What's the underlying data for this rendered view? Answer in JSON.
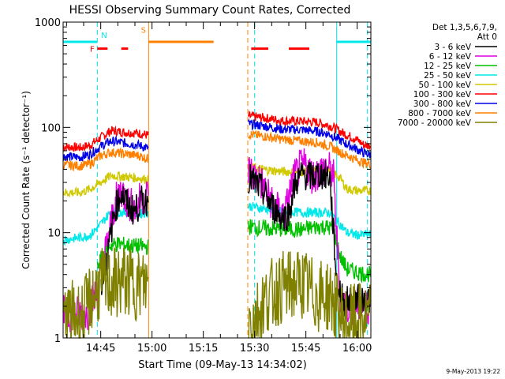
{
  "chart_data": {
    "type": "line",
    "title": "HESSI Observing Summary Count Rates, Corrected",
    "xlabel": "Start Time (09-May-13 14:34:02)",
    "ylabel": "Corrected Count Rate (s⁻¹ detector⁻¹)",
    "y_scale": "log",
    "ylim": [
      1,
      1000
    ],
    "xlim_minutes_after_1434": [
      0,
      90
    ],
    "y_ticks": [
      {
        "value": 1,
        "label": "1"
      },
      {
        "value": 10,
        "label": "10"
      },
      {
        "value": 100,
        "label": "100"
      },
      {
        "value": 1000,
        "label": "1000"
      }
    ],
    "x_ticks": [
      {
        "minutes": 11,
        "label": "14:45"
      },
      {
        "minutes": 26,
        "label": "15:00"
      },
      {
        "minutes": 41,
        "label": "15:15"
      },
      {
        "minutes": 56,
        "label": "15:30"
      },
      {
        "minutes": 71,
        "label": "15:45"
      },
      {
        "minutes": 86,
        "label": "16:00"
      }
    ],
    "legend": {
      "placement": "right",
      "header": [
        "Det 1,3,5,6,7,9,",
        "Att 0"
      ],
      "entries": [
        {
          "label": "3 - 6 keV",
          "color": "#000000"
        },
        {
          "label": "6 - 12 keV",
          "color": "#e000e0"
        },
        {
          "label": "12 - 25 keV",
          "color": "#00c000"
        },
        {
          "label": "25 - 50 keV",
          "color": "#00e8e8"
        },
        {
          "label": "50 - 100 keV",
          "color": "#d0c800"
        },
        {
          "label": "100 - 300 keV",
          "color": "#ff0000"
        },
        {
          "label": "300 - 800 keV",
          "color": "#0000e8"
        },
        {
          "label": "800 - 7000 keV",
          "color": "#ff8000"
        },
        {
          "label": "7000 - 20000 keV",
          "color": "#808000"
        }
      ]
    },
    "segments_minutes": [
      [
        0,
        25
      ],
      [
        54,
        90
      ]
    ],
    "data_gap_minutes": [
      25,
      54
    ],
    "series": [
      {
        "name": "100 - 300 keV",
        "color": "#ff0000",
        "points": [
          [
            0,
            66
          ],
          [
            5,
            64
          ],
          [
            8,
            68
          ],
          [
            11,
            80
          ],
          [
            14,
            93
          ],
          [
            18,
            90
          ],
          [
            22,
            88
          ],
          [
            25,
            84
          ],
          [
            54,
            128
          ],
          [
            58,
            124
          ],
          [
            64,
            116
          ],
          [
            70,
            114
          ],
          [
            74,
            112
          ],
          [
            78,
            104
          ],
          [
            82,
            88
          ],
          [
            86,
            76
          ],
          [
            88,
            68
          ],
          [
            90,
            67
          ]
        ]
      },
      {
        "name": "300 - 800 keV",
        "color": "#0000e8",
        "points": [
          [
            0,
            53
          ],
          [
            5,
            52
          ],
          [
            8,
            56
          ],
          [
            11,
            66
          ],
          [
            14,
            74
          ],
          [
            18,
            71
          ],
          [
            22,
            68
          ],
          [
            25,
            63
          ],
          [
            54,
            108
          ],
          [
            58,
            104
          ],
          [
            64,
            96
          ],
          [
            70,
            95
          ],
          [
            74,
            92
          ],
          [
            78,
            86
          ],
          [
            82,
            72
          ],
          [
            86,
            62
          ],
          [
            88,
            57
          ],
          [
            90,
            55
          ]
        ]
      },
      {
        "name": "800 - 7000 keV",
        "color": "#ff8000",
        "points": [
          [
            0,
            44
          ],
          [
            5,
            43
          ],
          [
            8,
            45
          ],
          [
            11,
            54
          ],
          [
            14,
            58
          ],
          [
            18,
            56
          ],
          [
            22,
            54
          ],
          [
            25,
            50
          ],
          [
            54,
            86
          ],
          [
            58,
            83
          ],
          [
            64,
            77
          ],
          [
            70,
            74
          ],
          [
            74,
            72
          ],
          [
            78,
            66
          ],
          [
            82,
            56
          ],
          [
            86,
            49
          ],
          [
            88,
            46
          ],
          [
            90,
            45
          ]
        ]
      },
      {
        "name": "50 - 100 keV",
        "color": "#d0c800",
        "points": [
          [
            0,
            24
          ],
          [
            5,
            24
          ],
          [
            8,
            26
          ],
          [
            11,
            30
          ],
          [
            14,
            35
          ],
          [
            18,
            34
          ],
          [
            22,
            33
          ],
          [
            25,
            32
          ],
          [
            54,
            42
          ],
          [
            58,
            40
          ],
          [
            64,
            38
          ],
          [
            70,
            38
          ],
          [
            74,
            39
          ],
          [
            78,
            39
          ],
          [
            81,
            33
          ],
          [
            83,
            26
          ],
          [
            86,
            25
          ],
          [
            90,
            25
          ]
        ]
      },
      {
        "name": "25 - 50 keV",
        "color": "#00e8e8",
        "points": [
          [
            0,
            8.5
          ],
          [
            5,
            9
          ],
          [
            8,
            9.5
          ],
          [
            11,
            12
          ],
          [
            14,
            16
          ],
          [
            18,
            15.5
          ],
          [
            22,
            15
          ],
          [
            25,
            15.5
          ],
          [
            54,
            18
          ],
          [
            58,
            17
          ],
          [
            64,
            16
          ],
          [
            70,
            15.5
          ],
          [
            74,
            15.5
          ],
          [
            78,
            15.5
          ],
          [
            81,
            12
          ],
          [
            83,
            10
          ],
          [
            86,
            9.5
          ],
          [
            90,
            9.6
          ]
        ]
      },
      {
        "name": "12 - 25 keV",
        "color": "#00c000",
        "points": [
          [
            10,
            4.8
          ],
          [
            11,
            5.5
          ],
          [
            13,
            7.5
          ],
          [
            16,
            7.8
          ],
          [
            20,
            7.5
          ],
          [
            25,
            7.3
          ],
          [
            54,
            11.5
          ],
          [
            58,
            11
          ],
          [
            64,
            10.8
          ],
          [
            70,
            10.7
          ],
          [
            75,
            11.5
          ],
          [
            79,
            11
          ],
          [
            81,
            6
          ],
          [
            83,
            4.5
          ],
          [
            86,
            4.2
          ],
          [
            90,
            4
          ]
        ]
      },
      {
        "name": "6 - 12 keV",
        "color": "#e000e0",
        "points": [
          [
            0,
            1.7
          ],
          [
            7,
            1.7
          ],
          [
            10,
            2.8
          ],
          [
            13,
            8.2
          ],
          [
            15,
            18
          ],
          [
            17,
            26
          ],
          [
            19,
            19
          ],
          [
            21,
            17
          ],
          [
            23,
            22
          ],
          [
            25,
            23
          ],
          [
            54,
            40
          ],
          [
            58,
            30
          ],
          [
            60,
            22
          ],
          [
            63,
            16
          ],
          [
            65,
            15.5
          ],
          [
            67,
            30
          ],
          [
            69,
            40
          ],
          [
            71,
            44
          ],
          [
            73,
            34
          ],
          [
            75,
            38
          ],
          [
            77,
            42
          ],
          [
            79,
            36
          ],
          [
            81,
            2.5
          ],
          [
            83,
            2
          ],
          [
            86,
            2
          ],
          [
            90,
            2
          ]
        ]
      },
      {
        "name": "3 - 6 keV",
        "color": "#000000",
        "points": [
          [
            11,
            3.2
          ],
          [
            13,
            6
          ],
          [
            15,
            16
          ],
          [
            17,
            24
          ],
          [
            19,
            18
          ],
          [
            21,
            16
          ],
          [
            23,
            20
          ],
          [
            25,
            20
          ],
          [
            54,
            34
          ],
          [
            58,
            26
          ],
          [
            61,
            18
          ],
          [
            64,
            14
          ],
          [
            66,
            15
          ],
          [
            68,
            30
          ],
          [
            70,
            36
          ],
          [
            72,
            34
          ],
          [
            75,
            36
          ],
          [
            78,
            34
          ],
          [
            80,
            3.5
          ],
          [
            82,
            2.2
          ],
          [
            85,
            2.3
          ],
          [
            90,
            2.3
          ]
        ]
      },
      {
        "name": "7000 - 20000 keV",
        "color": "#808000",
        "points": [
          [
            0,
            1.6
          ],
          [
            6,
            1.6
          ],
          [
            8,
            2.4
          ],
          [
            11,
            3.2
          ],
          [
            14,
            3.2
          ],
          [
            18,
            3.5
          ],
          [
            22,
            3.2
          ],
          [
            25,
            3.2
          ],
          [
            54,
            1.5
          ],
          [
            56,
            1.6
          ],
          [
            60,
            2.5
          ],
          [
            64,
            3
          ],
          [
            70,
            3.3
          ],
          [
            74,
            2.5
          ],
          [
            78,
            2.5
          ],
          [
            82,
            1.4
          ],
          [
            86,
            1.5
          ],
          [
            90,
            1.5
          ]
        ]
      }
    ],
    "attenuator_levels": [
      {
        "color": "#00e8e8",
        "value": 650,
        "ranges_minutes": [
          [
            0,
            10
          ],
          [
            80,
            90
          ]
        ]
      },
      {
        "color": "#ff8000",
        "value": 650,
        "ranges_minutes": [
          [
            25,
            44
          ]
        ]
      }
    ],
    "flags": [
      {
        "label": "F",
        "color": "#ff0000",
        "label_minutes": 8.5,
        "value": 560,
        "ranges_minutes": [
          [
            10,
            13
          ],
          [
            17,
            19
          ],
          [
            55,
            60
          ],
          [
            66,
            72
          ]
        ]
      },
      {
        "label": "N",
        "color": "#00e8e8",
        "label_minutes": 12,
        "value": 760
      },
      {
        "label": "S",
        "color": "#ff8000",
        "label_minutes": 23.5,
        "value": 850
      }
    ],
    "markers": [
      {
        "minutes": 10,
        "color": "#00e8e8",
        "style": "dashed"
      },
      {
        "minutes": 25,
        "color": "#ff8000",
        "style": "solid"
      },
      {
        "minutes": 54,
        "color": "#ff8000",
        "style": "dashed"
      },
      {
        "minutes": 56,
        "color": "#00e8e8",
        "style": "dashed"
      },
      {
        "minutes": 80,
        "color": "#00e8e8",
        "style": "solid"
      },
      {
        "minutes": 89,
        "color": "#00e8e8",
        "style": "dashed"
      }
    ]
  },
  "footer": {
    "timestamp": "9-May-2013 19:22"
  }
}
